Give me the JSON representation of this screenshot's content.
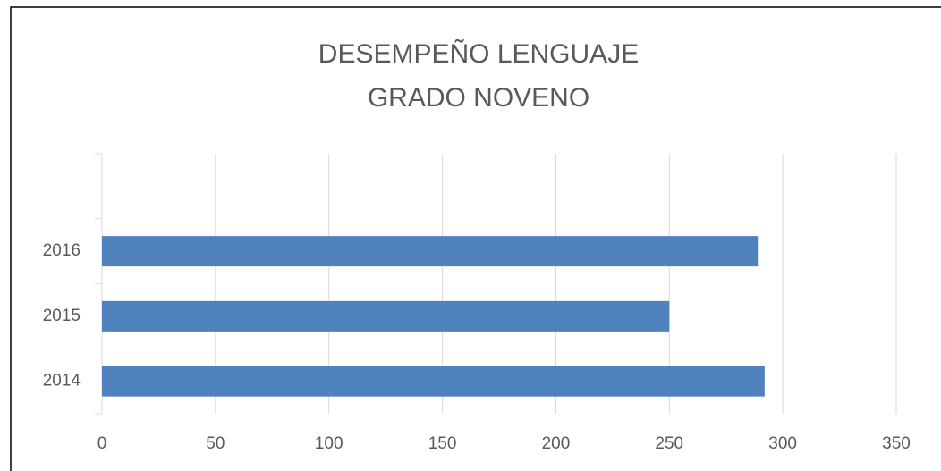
{
  "chart_data": {
    "type": "barh",
    "title": [
      "DESEMPEÑO LENGUAJE",
      "GRADO NOVENO"
    ],
    "categories": [
      "2014",
      "2015",
      "2016",
      null
    ],
    "values": [
      292,
      250,
      289,
      null
    ],
    "color": "#4f81bd",
    "xlim": [
      0,
      350
    ],
    "xticks": [
      0,
      50,
      100,
      150,
      200,
      250,
      300,
      350
    ],
    "grid": true
  }
}
